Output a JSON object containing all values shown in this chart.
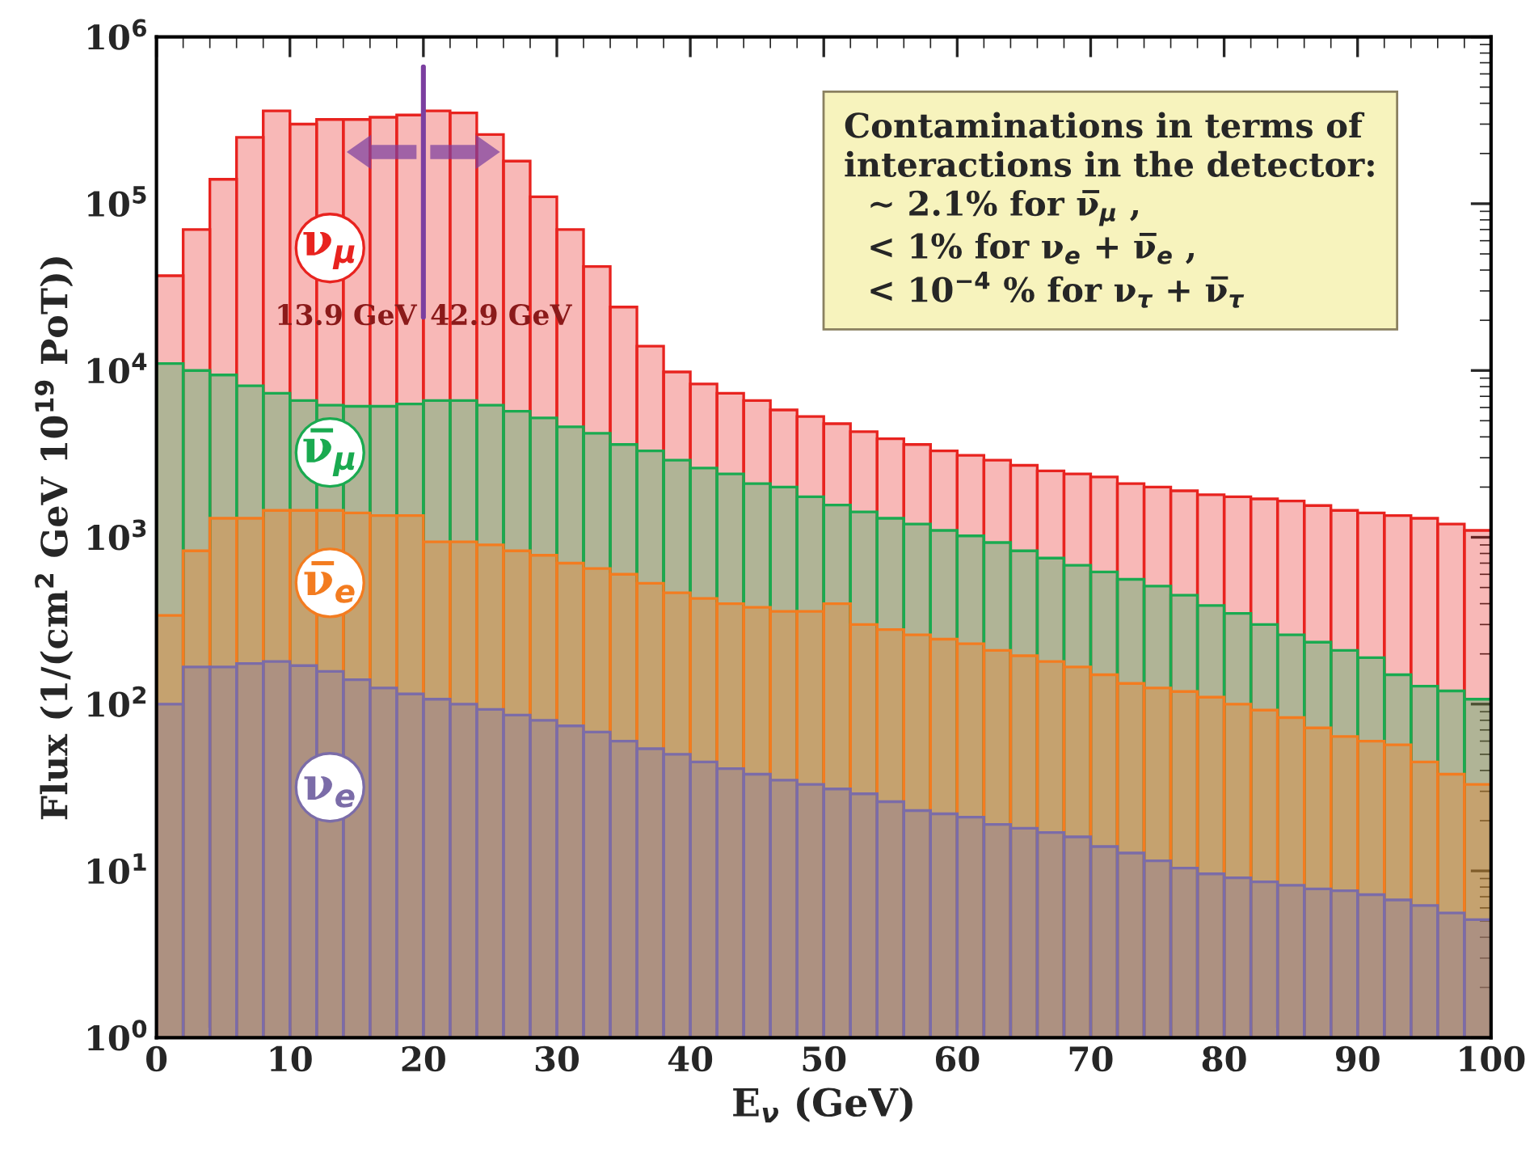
{
  "chart_data": {
    "type": "histogram",
    "xlabel": "E$_{ν}$ (GeV)",
    "ylabel": "Flux (1/(cm$^{2}$ GeV 10$^{19}$ PoT))",
    "log": "y",
    "bins": [
      0,
      2,
      4,
      6,
      8,
      10,
      12,
      14,
      16,
      18,
      20,
      22,
      24,
      26,
      28,
      30,
      32,
      34,
      36,
      38,
      40,
      42,
      44,
      46,
      48,
      50,
      52,
      54,
      56,
      58,
      60,
      62,
      64,
      66,
      68,
      70,
      72,
      74,
      76,
      78,
      80,
      82,
      84,
      86,
      88,
      90,
      92,
      94,
      96,
      98,
      100
    ],
    "series": [
      {
        "name": "ν$_{μ}$",
        "color": "#e8231f",
        "values": [
          37000,
          70000,
          140000,
          250000,
          360000,
          300000,
          320000,
          320000,
          330000,
          340000,
          360000,
          350000,
          260000,
          180000,
          110000,
          70000,
          42000,
          24000,
          14000,
          9800,
          8300,
          7300,
          6600,
          5800,
          5300,
          4800,
          4300,
          3900,
          3600,
          3300,
          3100,
          2900,
          2700,
          2500,
          2400,
          2300,
          2100,
          2000,
          1900,
          1800,
          1750,
          1700,
          1650,
          1550,
          1450,
          1400,
          1350,
          1300,
          1200,
          1100
        ]
      },
      {
        "name": "ν̅$_{μ}$",
        "color": "#1aaa50",
        "values": [
          11000,
          10000,
          9400,
          8100,
          7300,
          6600,
          6200,
          6100,
          6100,
          6300,
          6600,
          6600,
          6200,
          5700,
          5200,
          4600,
          4200,
          3600,
          3300,
          2900,
          2600,
          2400,
          2100,
          2000,
          1750,
          1560,
          1420,
          1300,
          1200,
          1100,
          1020,
          930,
          830,
          750,
          680,
          620,
          560,
          510,
          450,
          390,
          350,
          300,
          260,
          235,
          210,
          190,
          150,
          128,
          120,
          107
        ]
      },
      {
        "name": "ν̅$_{e}$",
        "color": "#f37c20",
        "values": [
          340,
          830,
          1300,
          1300,
          1450,
          1450,
          1450,
          1400,
          1350,
          1350,
          940,
          940,
          900,
          830,
          780,
          700,
          650,
          600,
          530,
          465,
          430,
          400,
          380,
          360,
          360,
          400,
          300,
          280,
          260,
          245,
          230,
          210,
          195,
          180,
          167,
          150,
          133,
          125,
          119,
          110,
          100,
          92,
          83,
          72,
          64,
          60,
          57,
          45,
          38,
          33
        ]
      },
      {
        "name": "ν$_{e}$",
        "color": "#7b6ca8",
        "values": [
          100,
          167,
          167,
          175,
          180,
          170,
          157,
          140,
          125,
          115,
          107,
          100,
          93,
          86,
          80,
          74,
          68,
          60,
          54,
          50,
          45,
          41,
          38,
          35,
          33,
          31,
          29,
          26,
          23,
          22,
          21,
          19,
          18,
          17,
          16,
          14,
          12.8,
          11.5,
          10.4,
          9.6,
          9.1,
          8.6,
          8.2,
          7.8,
          7.6,
          7.2,
          6.7,
          6.2,
          5.6,
          5.1
        ]
      }
    ],
    "xlim": [
      0,
      100
    ],
    "xticks": [
      0,
      10,
      20,
      30,
      40,
      50,
      60,
      70,
      80,
      90,
      100
    ],
    "ylim": [
      1,
      1000000
    ],
    "yticks": [
      {
        "value": 1,
        "label": "10$^{0}$"
      },
      {
        "value": 10,
        "label": "10$^{1}$"
      },
      {
        "value": 100,
        "label": "10$^{2}$"
      },
      {
        "value": 1000,
        "label": "10$^{3}$"
      },
      {
        "value": 10000,
        "label": "10$^{4}$"
      },
      {
        "value": 100000,
        "label": "10$^{5}$"
      },
      {
        "value": 1000000,
        "label": "10$^{6}$"
      }
    ],
    "ref_lines": [
      {
        "axis": "x",
        "value": 20,
        "color": "#7b3fa0"
      }
    ],
    "annotations": [
      "13.9 GeV",
      "42.9 GeV",
      "Contaminations in terms of\ninteractions in the detector:\n  ∼ 2.1% for ν̅$_{μ}$ ,\n  < 1% for ν$_{e}$ + ν̅$_{e}$ ,\n  < 10$^{−4}$ % for ν$_{τ}$ + ν̅$_{τ}$"
    ],
    "grid": false,
    "legend": false
  }
}
